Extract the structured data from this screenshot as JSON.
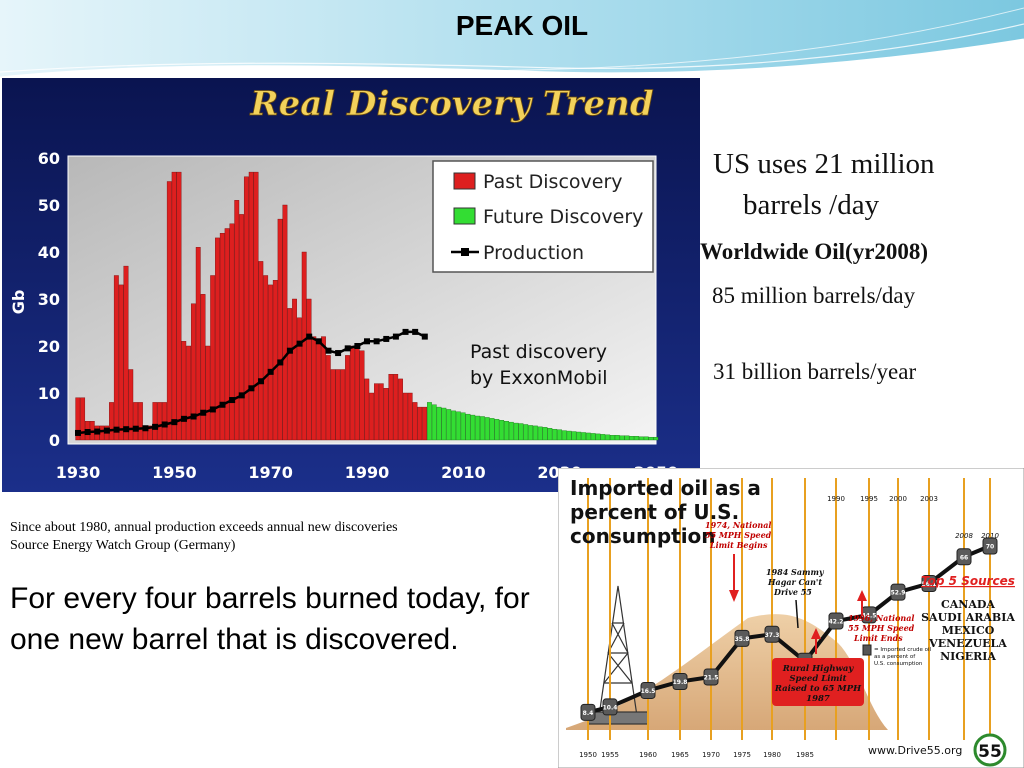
{
  "slide_title": "PEAK OIL",
  "colors": {
    "header_light": "#d6eef6",
    "header_mid": "#8fd0e4",
    "panel_navy": "#0b1a5e",
    "chart1_title": "#f3d25b",
    "past_discovery": "#dd1f1f",
    "future_discovery": "#33dd33",
    "production": "#000000",
    "callout_red": "#e02020",
    "line_gold": "#e8a020"
  },
  "facts": {
    "us_line1": "US uses 21 million",
    "us_line2": "barrels /day",
    "worldwide_heading": "Worldwide Oil(yr2008)",
    "worldwide_daily": "85 million barrels/day",
    "worldwide_yearly": "31 billion barrels/year"
  },
  "notes": {
    "line1": "Since about 1980, annual production exceeds annual new discoveries",
    "line2": "Source  Energy Watch Group  (Germany)"
  },
  "statement": "For every four barrels burned today, for one new barrel that is discovered.",
  "chart_data": [
    {
      "type": "bar",
      "title": "Real Discovery Trend",
      "ylabel": "Gb",
      "xlabel": "",
      "ylim": [
        0,
        60
      ],
      "xlim": [
        1930,
        2050
      ],
      "yticks": [
        "0",
        "10",
        "20",
        "30",
        "40",
        "50",
        "60"
      ],
      "xticks": [
        "1930",
        "1950",
        "1970",
        "1990",
        "2010",
        "2030",
        "2050"
      ],
      "grid": false,
      "legend_position": "top-right",
      "annotation_line1": "Past discovery",
      "annotation_line2": "by ExxonMobil",
      "series": [
        {
          "name": "Past Discovery",
          "x": [
            1930,
            1931,
            1932,
            1933,
            1934,
            1935,
            1936,
            1937,
            1938,
            1939,
            1940,
            1941,
            1942,
            1943,
            1944,
            1945,
            1946,
            1947,
            1948,
            1949,
            1950,
            1951,
            1952,
            1953,
            1954,
            1955,
            1956,
            1957,
            1958,
            1959,
            1960,
            1961,
            1962,
            1963,
            1964,
            1965,
            1966,
            1967,
            1968,
            1969,
            1970,
            1971,
            1972,
            1973,
            1974,
            1975,
            1976,
            1977,
            1978,
            1979,
            1980,
            1981,
            1982,
            1983,
            1984,
            1985,
            1986,
            1987,
            1988,
            1989,
            1990,
            1991,
            1992,
            1993,
            1994,
            1995,
            1996,
            1997,
            1998,
            1999,
            2000,
            2001,
            2002
          ],
          "values": [
            9,
            9,
            4,
            4,
            3,
            3,
            3,
            8,
            35,
            33,
            37,
            15,
            8,
            8,
            3,
            3,
            8,
            8,
            8,
            55,
            57,
            57,
            21,
            20,
            29,
            41,
            31,
            20,
            35,
            43,
            44,
            45,
            46,
            51,
            48,
            56,
            57,
            57,
            38,
            35,
            33,
            34,
            47,
            50,
            28,
            30,
            26,
            40,
            30,
            22,
            21,
            22,
            18,
            15,
            15,
            15,
            18,
            20,
            20,
            19,
            13,
            10,
            12,
            12,
            11,
            14,
            14,
            13,
            10,
            10,
            8,
            7,
            7
          ]
        },
        {
          "name": "Future Discovery",
          "x": [
            2003,
            2004,
            2005,
            2006,
            2007,
            2008,
            2009,
            2010,
            2011,
            2012,
            2013,
            2014,
            2015,
            2016,
            2017,
            2018,
            2019,
            2020,
            2021,
            2022,
            2023,
            2024,
            2025,
            2026,
            2027,
            2028,
            2029,
            2030,
            2031,
            2032,
            2033,
            2034,
            2035,
            2036,
            2037,
            2038,
            2039,
            2040,
            2041,
            2042,
            2043,
            2044,
            2045,
            2046,
            2047,
            2048,
            2049,
            2050
          ],
          "values": [
            8,
            7.5,
            7,
            6.8,
            6.5,
            6.2,
            6,
            5.8,
            5.5,
            5.3,
            5.1,
            5,
            4.8,
            4.6,
            4.4,
            4.2,
            4,
            3.8,
            3.6,
            3.5,
            3.3,
            3.1,
            3,
            2.8,
            2.7,
            2.5,
            2.3,
            2.2,
            2,
            1.9,
            1.8,
            1.7,
            1.6,
            1.5,
            1.4,
            1.3,
            1.2,
            1.1,
            1,
            1,
            0.9,
            0.9,
            0.8,
            0.8,
            0.7,
            0.7,
            0.6,
            0.6
          ]
        },
        {
          "name": "Production",
          "type": "line",
          "x": [
            1930,
            1932,
            1934,
            1936,
            1938,
            1940,
            1942,
            1944,
            1946,
            1948,
            1950,
            1952,
            1954,
            1956,
            1958,
            1960,
            1962,
            1964,
            1966,
            1968,
            1970,
            1972,
            1974,
            1976,
            1978,
            1980,
            1982,
            1984,
            1986,
            1988,
            1990,
            1992,
            1994,
            1996,
            1998,
            2000,
            2002
          ],
          "values": [
            1.5,
            1.7,
            1.8,
            2,
            2.2,
            2.3,
            2.4,
            2.5,
            2.8,
            3.3,
            3.8,
            4.5,
            5,
            5.8,
            6.5,
            7.5,
            8.5,
            9.5,
            11,
            12.5,
            14.5,
            16.5,
            19,
            20.5,
            22,
            21,
            19,
            18.5,
            19.5,
            20,
            21,
            21,
            21.5,
            22,
            23,
            23,
            22
          ]
        }
      ]
    },
    {
      "type": "line",
      "title": "Imported oil as a percent of U.S. consumption",
      "xlabel": "",
      "ylabel": "",
      "x": [
        "1950",
        "1955",
        "1960",
        "1965",
        "1970",
        "1975",
        "1980",
        "1985",
        "1990",
        "1995",
        "2000",
        "2003",
        "2008",
        "2010"
      ],
      "series": [
        {
          "name": "Imported crude oil as a percent of U.S. consumption",
          "values": [
            8.4,
            10.4,
            16.5,
            19.8,
            21.5,
            35.8,
            37.3,
            27.3,
            42.2,
            44.5,
            52.9,
            56.1,
            66,
            70
          ]
        }
      ],
      "data_labels": [
        "8.4",
        "10.4",
        "16.5",
        "19.8",
        "21.5",
        "35.8",
        "37.3",
        "27.3",
        "42.2",
        "44.5",
        "52.9",
        "56.1",
        "66",
        "70"
      ],
      "annotations": [
        "1974, National 55 MPH Speed Limit Begins",
        "1984 Sammy Hagar Can't Drive 55",
        "1996, National 55 MPH Speed Limit Ends",
        "Rural Highway Speed Limit Raised to 65 MPH 1987"
      ],
      "legend_text": "= Imported crude oil as a percent of U.S. consumption",
      "top_sources_title": "Top 5 Sources",
      "top_sources": [
        "CANADA",
        "SAUDI ARABIA",
        "MEXICO",
        "VENEZUELA",
        "NIGERIA"
      ],
      "source_url": "www.Drive55.org",
      "logo_number": "55"
    }
  ]
}
